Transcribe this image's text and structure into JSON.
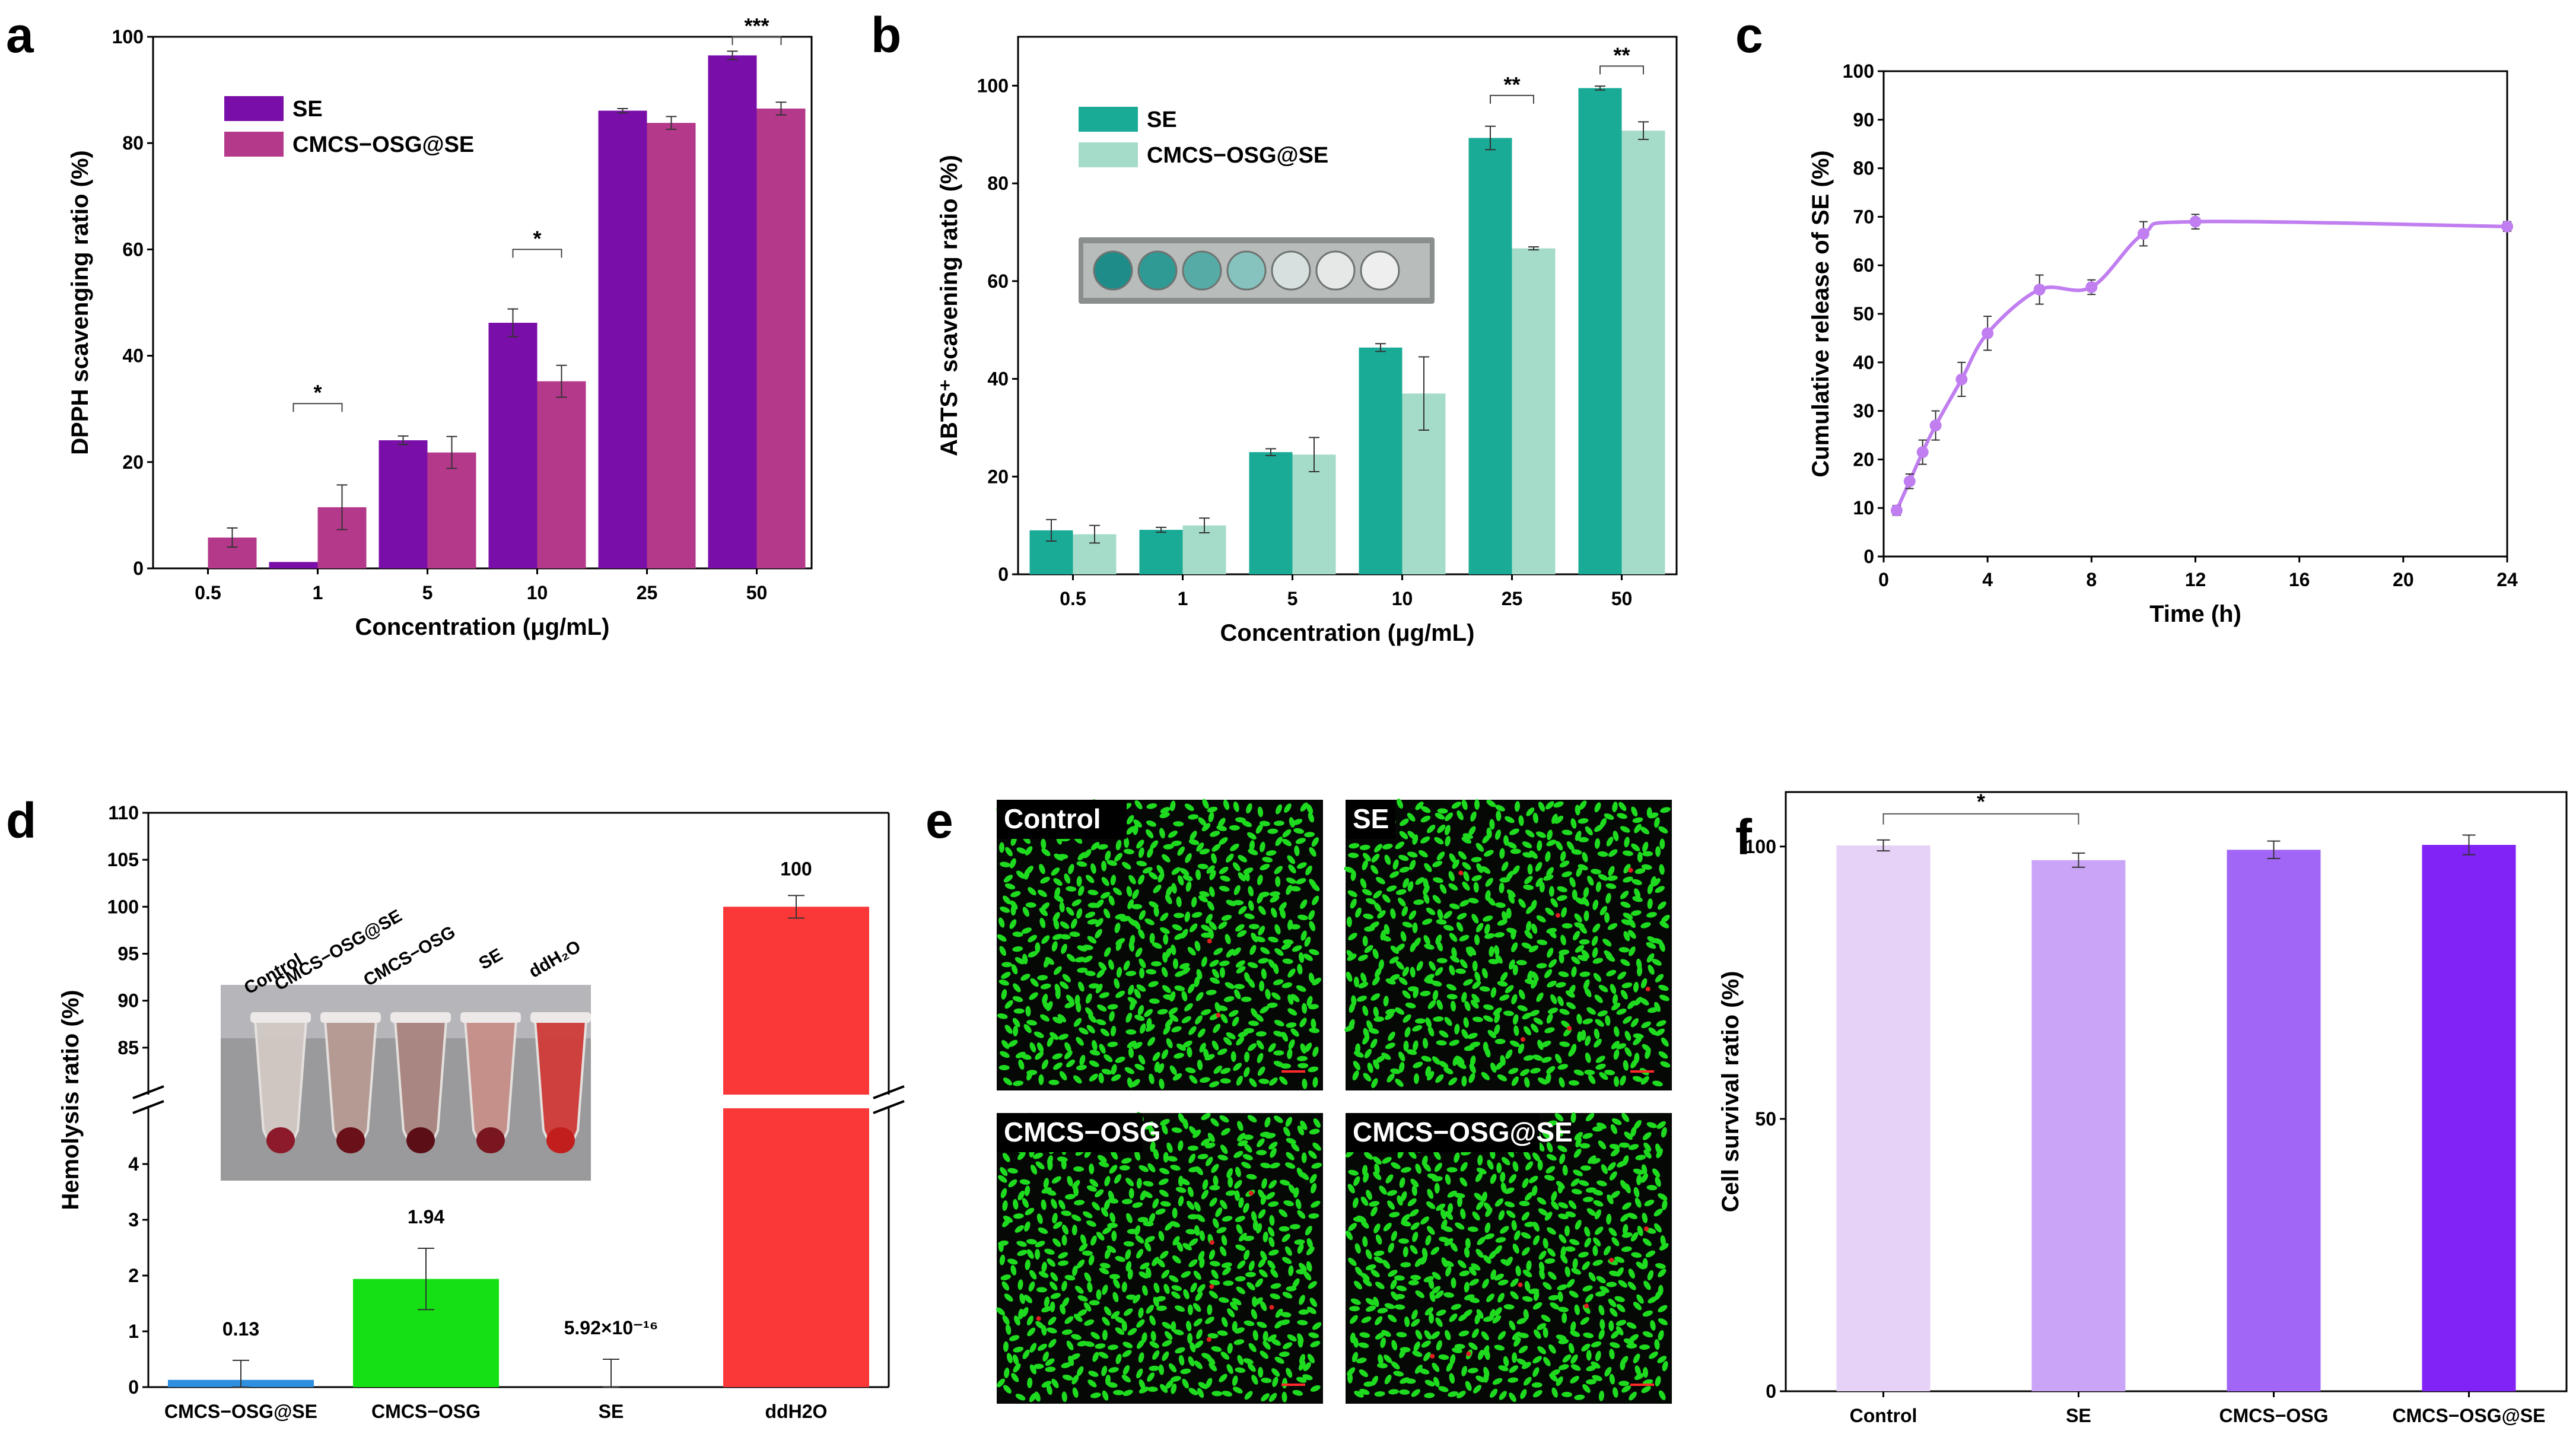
{
  "panel_labels": [
    "a",
    "b",
    "c",
    "d",
    "e",
    "f"
  ],
  "chart_data": [
    {
      "id": "a",
      "type": "bar",
      "categories": [
        "0.5",
        "1",
        "5",
        "10",
        "25",
        "50"
      ],
      "series": [
        {
          "name": "SE",
          "color": "#7a0ea8",
          "values": [
            0,
            1.2,
            24.1,
            46.2,
            86.1,
            96.5
          ],
          "errors": [
            0,
            0,
            0.8,
            2.6,
            0.4,
            0.8
          ]
        },
        {
          "name": "CMCS−OSG@SE",
          "color": "#b5398b",
          "values": [
            5.8,
            11.5,
            21.8,
            35.2,
            83.8,
            86.5
          ],
          "errors": [
            1.8,
            4.2,
            3.0,
            3.0,
            1.2,
            1.2
          ]
        }
      ],
      "xlabel": "Concentration (μg/mL)",
      "ylabel": "DPPH scavenging ratio (%)",
      "ylim": [
        0,
        100
      ],
      "yticks": [
        0,
        20,
        40,
        60,
        80,
        100
      ],
      "significance": [
        {
          "cat": 1,
          "label": "*",
          "y": 31
        },
        {
          "cat": 3,
          "label": "*",
          "y": 60
        },
        {
          "cat": 5,
          "label": "***",
          "y": 100
        }
      ],
      "legend_position": "top-left"
    },
    {
      "id": "b",
      "type": "bar",
      "categories": [
        "0.5",
        "1",
        "5",
        "10",
        "25",
        "50"
      ],
      "series": [
        {
          "name": "SE",
          "color": "#1aab97",
          "values": [
            9.0,
            9.1,
            25.0,
            46.4,
            89.3,
            99.5
          ],
          "errors": [
            2.2,
            0.5,
            0.7,
            0.8,
            2.4,
            0.4
          ]
        },
        {
          "name": "CMCS−OSG@SE",
          "color": "#a5dcc9",
          "values": [
            8.2,
            10.0,
            24.5,
            37.0,
            66.7,
            90.8
          ],
          "errors": [
            1.8,
            1.5,
            3.5,
            7.5,
            0.3,
            1.8
          ]
        }
      ],
      "xlabel": "Concentration (μg/mL)",
      "ylabel": "ABTS⁺ scavening ratio (%)",
      "ylim": [
        0,
        110
      ],
      "yticks": [
        0,
        20,
        40,
        60,
        80,
        100
      ],
      "significance": [
        {
          "cat": 4,
          "label": "**",
          "y": 98
        },
        {
          "cat": 5,
          "label": "**",
          "y": 104
        }
      ],
      "legend_position": "top-left"
    },
    {
      "id": "c",
      "type": "line",
      "x": [
        0.5,
        1,
        1.5,
        2,
        3,
        4,
        6,
        8,
        10,
        12,
        24
      ],
      "y": [
        9.5,
        15.5,
        21.5,
        27,
        36.5,
        46,
        55,
        55.5,
        66.5,
        69,
        68
      ],
      "errors": [
        1,
        1.5,
        2.5,
        3,
        3.5,
        3.5,
        3,
        1.5,
        2.5,
        1.5,
        1
      ],
      "color": "#c07ef0",
      "xlabel": "Time (h)",
      "ylabel": "Cumulative release of SE (%)",
      "xlim": [
        0,
        24
      ],
      "ylim": [
        0,
        100
      ],
      "xticks": [
        0,
        4,
        8,
        12,
        16,
        20,
        24
      ],
      "yticks": [
        0,
        10,
        20,
        30,
        40,
        50,
        60,
        70,
        80,
        90,
        100
      ]
    },
    {
      "id": "d",
      "type": "bar",
      "categories": [
        "CMCS−OSG@SE",
        "CMCS−OSG",
        "SE",
        "ddH2O"
      ],
      "values": [
        0.13,
        1.94,
        0,
        100
      ],
      "errors": [
        0.35,
        0.55,
        0.5,
        1.2
      ],
      "colors": [
        "#2e8fe0",
        "#14e014",
        "#8c8c8c",
        "#fb3838"
      ],
      "value_labels": [
        "0.13",
        "1.94",
        "5.92×10⁻¹⁶",
        "100"
      ],
      "ylabel": "Hemolysis ratio (%)",
      "broken_axis": {
        "lower": [
          0,
          5
        ],
        "upper": [
          80,
          110
        ]
      },
      "yticks_lower": [
        0,
        1,
        2,
        3,
        4
      ],
      "yticks_upper": [
        85,
        90,
        95,
        100,
        105,
        110
      ]
    },
    {
      "id": "f",
      "type": "bar",
      "categories": [
        "Control",
        "SE",
        "CMCS−OSG",
        "CMCS−OSG@SE"
      ],
      "values": [
        100.2,
        97.5,
        99.4,
        100.3
      ],
      "errors": [
        1.0,
        1.3,
        1.6,
        1.8
      ],
      "colors": [
        "#e6d2f7",
        "#caa5f7",
        "#a166f6",
        "#8122f6"
      ],
      "ylabel": "Cell survival ratio (%)",
      "ylim": [
        0,
        110
      ],
      "yticks": [
        0,
        50,
        100
      ],
      "significance": [
        {
          "from": 0,
          "to": 1,
          "label": "*",
          "y": 106
        }
      ]
    }
  ],
  "inset_b": {
    "wells": 7
  },
  "inset_d": {
    "tube_labels": [
      "Control",
      "CMCS−OSG@SE",
      "CMCS−OSG",
      "SE",
      "ddH₂O"
    ]
  },
  "panel_e": {
    "images": [
      {
        "label": "Control"
      },
      {
        "label": "SE"
      },
      {
        "label": "CMCS−OSG"
      },
      {
        "label": "CMCS−OSG@SE"
      }
    ]
  },
  "colors": {
    "cell_green": "#1fdb1f",
    "cell_bg": "#050805",
    "dead_red": "#e02020"
  }
}
